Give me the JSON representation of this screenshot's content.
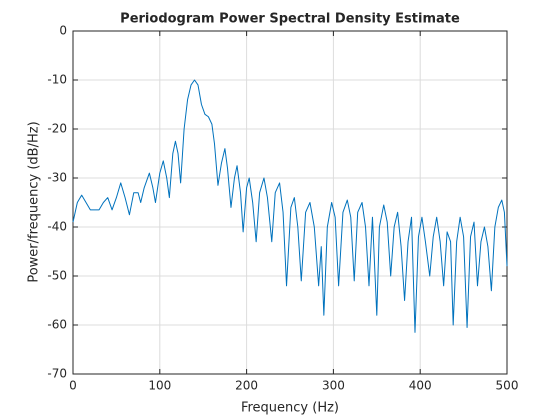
{
  "chart_data": {
    "type": "line",
    "title": "Periodogram Power Spectral Density Estimate",
    "xlabel": "Frequency (Hz)",
    "ylabel": "Power/frequency (dB/Hz)",
    "xlim": [
      0,
      500
    ],
    "ylim": [
      -70,
      0
    ],
    "xticks": [
      0,
      100,
      200,
      300,
      400,
      500
    ],
    "yticks": [
      0,
      -10,
      -20,
      -30,
      -40,
      -50,
      -60,
      -70
    ],
    "grid": true,
    "series": [
      {
        "color": "#0072bd",
        "x": [
          0,
          5,
          10,
          15,
          20,
          25,
          30,
          35,
          40,
          45,
          50,
          55,
          60,
          65,
          70,
          75,
          78,
          82,
          88,
          92,
          95,
          100,
          104,
          108,
          111,
          115,
          118,
          121,
          124,
          128,
          132,
          136,
          140,
          144,
          148,
          152,
          156,
          160,
          163,
          167,
          171,
          175,
          178,
          182,
          186,
          189,
          193,
          196,
          200,
          203,
          207,
          211,
          215,
          220,
          224,
          229,
          233,
          238,
          242,
          246,
          251,
          255,
          259,
          263,
          268,
          273,
          278,
          283,
          286,
          289,
          293,
          298,
          302,
          306,
          311,
          316,
          320,
          324,
          328,
          333,
          337,
          341,
          345,
          350,
          353,
          358,
          362,
          366,
          370,
          374,
          378,
          382,
          386,
          390,
          394,
          398,
          402,
          406,
          411,
          415,
          419,
          423,
          427,
          431,
          435,
          438,
          442,
          446,
          450,
          454,
          458,
          462,
          466,
          470,
          474,
          478,
          482,
          486,
          490,
          494,
          497,
          500
        ],
        "values": [
          -39,
          -35,
          -33.5,
          -35,
          -36.5,
          -36.5,
          -36.5,
          -35,
          -34,
          -36.5,
          -34,
          -31,
          -34,
          -37.5,
          -33,
          -33,
          -35,
          -32,
          -29,
          -32,
          -35,
          -29,
          -26.5,
          -30,
          -34,
          -25,
          -22.5,
          -25,
          -31,
          -20,
          -14,
          -11,
          -10,
          -11,
          -15,
          -17,
          -17.5,
          -19,
          -23,
          -31.5,
          -27,
          -24,
          -28,
          -36,
          -30,
          -27.5,
          -33,
          -41,
          -32,
          -30,
          -35,
          -43,
          -33,
          -30,
          -34,
          -43,
          -33,
          -31,
          -37,
          -52,
          -36,
          -34,
          -40,
          -51,
          -37,
          -35,
          -40,
          -52,
          -44,
          -58,
          -40,
          -35,
          -38,
          -52,
          -37,
          -34.5,
          -38,
          -51,
          -37,
          -35,
          -40,
          -52,
          -38,
          -58,
          -40,
          -35.5,
          -39,
          -50,
          -40,
          -37,
          -44,
          -55,
          -43,
          -38,
          -61.5,
          -42,
          -38,
          -43,
          -50,
          -42,
          -38,
          -43,
          -52,
          -41,
          -43,
          -60,
          -43,
          -38,
          -42,
          -60.5,
          -42,
          -39,
          -52,
          -43,
          -40,
          -44,
          -53,
          -40,
          -36,
          -34.5,
          -37,
          -48
        ]
      }
    ]
  }
}
